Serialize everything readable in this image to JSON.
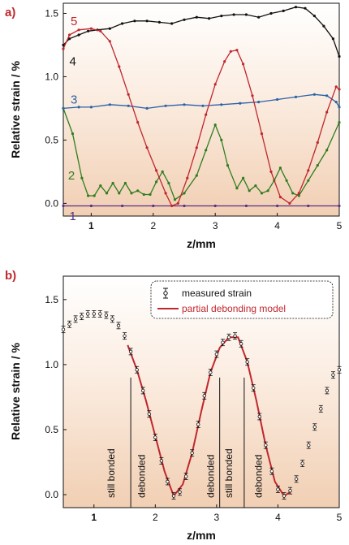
{
  "chart_data": [
    {
      "panel": "a)",
      "type": "line",
      "xlabel": "z/mm",
      "ylabel": "Relative strain / %",
      "xlim": [
        0.55,
        5.0
      ],
      "ylim": [
        -0.1,
        1.58
      ],
      "xticks": [
        "1",
        "2",
        "3",
        "4",
        "5"
      ],
      "yticks": [
        "0.0",
        "0.5",
        "1.0",
        "1.5"
      ],
      "background": "gradient",
      "series": [
        {
          "name": "1",
          "color": "#5a2f86",
          "label_pos": [
            0.7,
            -0.1
          ],
          "points": [
            [
              0.55,
              -0.02
            ],
            [
              1,
              -0.02
            ],
            [
              1.5,
              -0.02
            ],
            [
              2,
              -0.02
            ],
            [
              2.5,
              -0.02
            ],
            [
              3,
              -0.02
            ],
            [
              3.5,
              -0.02
            ],
            [
              4,
              -0.02
            ],
            [
              4.5,
              -0.02
            ],
            [
              5,
              -0.02
            ]
          ]
        },
        {
          "name": "2",
          "color": "#2f7d1e",
          "label_pos": [
            0.68,
            0.22
          ],
          "points": [
            [
              0.55,
              0.75
            ],
            [
              0.7,
              0.55
            ],
            [
              0.85,
              0.2
            ],
            [
              0.95,
              0.06
            ],
            [
              1.05,
              0.06
            ],
            [
              1.15,
              0.14
            ],
            [
              1.25,
              0.08
            ],
            [
              1.35,
              0.16
            ],
            [
              1.45,
              0.08
            ],
            [
              1.55,
              0.16
            ],
            [
              1.65,
              0.08
            ],
            [
              1.75,
              0.1
            ],
            [
              1.85,
              0.07
            ],
            [
              1.95,
              0.07
            ],
            [
              2.05,
              0.17
            ],
            [
              2.15,
              0.25
            ],
            [
              2.25,
              0.16
            ],
            [
              2.35,
              0.03
            ],
            [
              2.5,
              0.08
            ],
            [
              2.7,
              0.22
            ],
            [
              2.85,
              0.42
            ],
            [
              3.0,
              0.62
            ],
            [
              3.1,
              0.5
            ],
            [
              3.2,
              0.3
            ],
            [
              3.35,
              0.12
            ],
            [
              3.45,
              0.2
            ],
            [
              3.55,
              0.1
            ],
            [
              3.65,
              0.14
            ],
            [
              3.75,
              0.08
            ],
            [
              3.85,
              0.1
            ],
            [
              3.95,
              0.18
            ],
            [
              4.05,
              0.28
            ],
            [
              4.15,
              0.18
            ],
            [
              4.25,
              0.08
            ],
            [
              4.35,
              0.06
            ],
            [
              4.5,
              0.18
            ],
            [
              4.65,
              0.3
            ],
            [
              4.8,
              0.42
            ],
            [
              5.0,
              0.64
            ]
          ]
        },
        {
          "name": "3",
          "color": "#2a62a8",
          "label_pos": [
            0.72,
            0.82
          ],
          "points": [
            [
              0.55,
              0.75
            ],
            [
              0.8,
              0.76
            ],
            [
              1,
              0.76
            ],
            [
              1.3,
              0.78
            ],
            [
              1.6,
              0.77
            ],
            [
              1.9,
              0.75
            ],
            [
              2.2,
              0.77
            ],
            [
              2.5,
              0.78
            ],
            [
              2.8,
              0.77
            ],
            [
              3.1,
              0.78
            ],
            [
              3.4,
              0.79
            ],
            [
              3.7,
              0.8
            ],
            [
              4.0,
              0.82
            ],
            [
              4.3,
              0.84
            ],
            [
              4.6,
              0.86
            ],
            [
              4.8,
              0.85
            ],
            [
              4.95,
              0.8
            ],
            [
              5.0,
              0.76
            ]
          ]
        },
        {
          "name": "4",
          "color": "#111111",
          "label_pos": [
            0.7,
            1.12
          ],
          "points": [
            [
              0.55,
              1.25
            ],
            [
              0.65,
              1.3
            ],
            [
              0.8,
              1.33
            ],
            [
              0.95,
              1.36
            ],
            [
              1.1,
              1.37
            ],
            [
              1.3,
              1.38
            ],
            [
              1.5,
              1.42
            ],
            [
              1.7,
              1.44
            ],
            [
              1.9,
              1.44
            ],
            [
              2.1,
              1.43
            ],
            [
              2.3,
              1.42
            ],
            [
              2.5,
              1.45
            ],
            [
              2.7,
              1.47
            ],
            [
              2.9,
              1.46
            ],
            [
              3.1,
              1.48
            ],
            [
              3.3,
              1.49
            ],
            [
              3.5,
              1.49
            ],
            [
              3.7,
              1.47
            ],
            [
              3.9,
              1.5
            ],
            [
              4.1,
              1.52
            ],
            [
              4.3,
              1.55
            ],
            [
              4.45,
              1.54
            ],
            [
              4.6,
              1.48
            ],
            [
              4.75,
              1.4
            ],
            [
              4.9,
              1.3
            ],
            [
              5.0,
              1.16
            ]
          ]
        },
        {
          "name": "5",
          "color": "#c0272d",
          "label_pos": [
            0.72,
            1.44
          ],
          "points": [
            [
              0.55,
              1.22
            ],
            [
              0.65,
              1.33
            ],
            [
              0.8,
              1.37
            ],
            [
              1.0,
              1.38
            ],
            [
              1.15,
              1.36
            ],
            [
              1.3,
              1.28
            ],
            [
              1.45,
              1.08
            ],
            [
              1.6,
              0.86
            ],
            [
              1.75,
              0.64
            ],
            [
              1.9,
              0.44
            ],
            [
              2.05,
              0.26
            ],
            [
              2.2,
              0.08
            ],
            [
              2.3,
              -0.02
            ],
            [
              2.4,
              0.0
            ],
            [
              2.55,
              0.2
            ],
            [
              2.7,
              0.44
            ],
            [
              2.85,
              0.7
            ],
            [
              3.0,
              0.94
            ],
            [
              3.15,
              1.12
            ],
            [
              3.25,
              1.2
            ],
            [
              3.35,
              1.21
            ],
            [
              3.45,
              1.1
            ],
            [
              3.6,
              0.85
            ],
            [
              3.75,
              0.55
            ],
            [
              3.9,
              0.25
            ],
            [
              4.05,
              0.05
            ],
            [
              4.2,
              0.0
            ],
            [
              4.35,
              0.08
            ],
            [
              4.5,
              0.26
            ],
            [
              4.65,
              0.48
            ],
            [
              4.8,
              0.72
            ],
            [
              4.95,
              0.92
            ],
            [
              5.0,
              0.9
            ]
          ]
        }
      ]
    },
    {
      "panel": "b)",
      "type": "scatter",
      "xlabel": "z/mm",
      "ylabel": "Relative strain / %",
      "xlim": [
        0.5,
        5.0
      ],
      "ylim": [
        -0.1,
        1.68
      ],
      "xticks": [
        "1",
        "2",
        "3",
        "4",
        "5"
      ],
      "yticks": [
        "0.0",
        "0.5",
        "1.0",
        "1.5"
      ],
      "background": "gradient",
      "legend": {
        "placement": "top-right",
        "entries": [
          {
            "label": "measured strain",
            "color": "#111111",
            "kind": "errorbar"
          },
          {
            "label": "partial debonding model",
            "color": "#c0272d",
            "kind": "line"
          }
        ]
      },
      "regions": [
        {
          "label": "still bonded",
          "x": 1.28
        },
        {
          "label": "debonded",
          "x": 1.78
        },
        {
          "label": "debonded",
          "x": 2.9
        },
        {
          "label": "still bonded",
          "x": 3.2
        },
        {
          "label": "debonded",
          "x": 3.68
        }
      ],
      "dividers": [
        {
          "x": 1.6,
          "y_top": 0.9
        },
        {
          "x": 3.05,
          "y_top": 0.9
        },
        {
          "x": 3.45,
          "y_top": 0.9
        }
      ],
      "measured": [
        [
          0.5,
          1.27
        ],
        [
          0.6,
          1.31
        ],
        [
          0.7,
          1.35
        ],
        [
          0.8,
          1.37
        ],
        [
          0.9,
          1.39
        ],
        [
          1.0,
          1.39
        ],
        [
          1.1,
          1.39
        ],
        [
          1.2,
          1.38
        ],
        [
          1.3,
          1.35
        ],
        [
          1.4,
          1.3
        ],
        [
          1.5,
          1.22
        ],
        [
          1.6,
          1.1
        ],
        [
          1.7,
          0.96
        ],
        [
          1.8,
          0.8
        ],
        [
          1.9,
          0.62
        ],
        [
          2.0,
          0.44
        ],
        [
          2.1,
          0.26
        ],
        [
          2.2,
          0.1
        ],
        [
          2.3,
          -0.01
        ],
        [
          2.4,
          0.02
        ],
        [
          2.5,
          0.14
        ],
        [
          2.6,
          0.32
        ],
        [
          2.7,
          0.54
        ],
        [
          2.8,
          0.76
        ],
        [
          2.9,
          0.94
        ],
        [
          3.0,
          1.08
        ],
        [
          3.1,
          1.17
        ],
        [
          3.2,
          1.21
        ],
        [
          3.3,
          1.22
        ],
        [
          3.4,
          1.16
        ],
        [
          3.5,
          1.02
        ],
        [
          3.6,
          0.82
        ],
        [
          3.7,
          0.6
        ],
        [
          3.8,
          0.38
        ],
        [
          3.9,
          0.18
        ],
        [
          4.0,
          0.04
        ],
        [
          4.1,
          -0.01
        ],
        [
          4.2,
          0.03
        ],
        [
          4.3,
          0.12
        ],
        [
          4.4,
          0.24
        ],
        [
          4.5,
          0.38
        ],
        [
          4.6,
          0.52
        ],
        [
          4.7,
          0.66
        ],
        [
          4.8,
          0.8
        ],
        [
          4.9,
          0.92
        ],
        [
          5.0,
          0.96
        ]
      ],
      "model": [
        [
          1.55,
          1.15
        ],
        [
          1.7,
          0.96
        ],
        [
          1.85,
          0.72
        ],
        [
          2.0,
          0.45
        ],
        [
          2.15,
          0.18
        ],
        [
          2.3,
          -0.01
        ],
        [
          2.45,
          0.08
        ],
        [
          2.6,
          0.32
        ],
        [
          2.75,
          0.64
        ],
        [
          2.9,
          0.94
        ],
        [
          3.05,
          1.13
        ],
        [
          3.2,
          1.21
        ],
        [
          3.35,
          1.21
        ],
        [
          3.5,
          1.02
        ],
        [
          3.65,
          0.72
        ],
        [
          3.8,
          0.38
        ],
        [
          3.95,
          0.1
        ],
        [
          4.1,
          -0.01
        ],
        [
          4.2,
          0.02
        ]
      ]
    }
  ]
}
